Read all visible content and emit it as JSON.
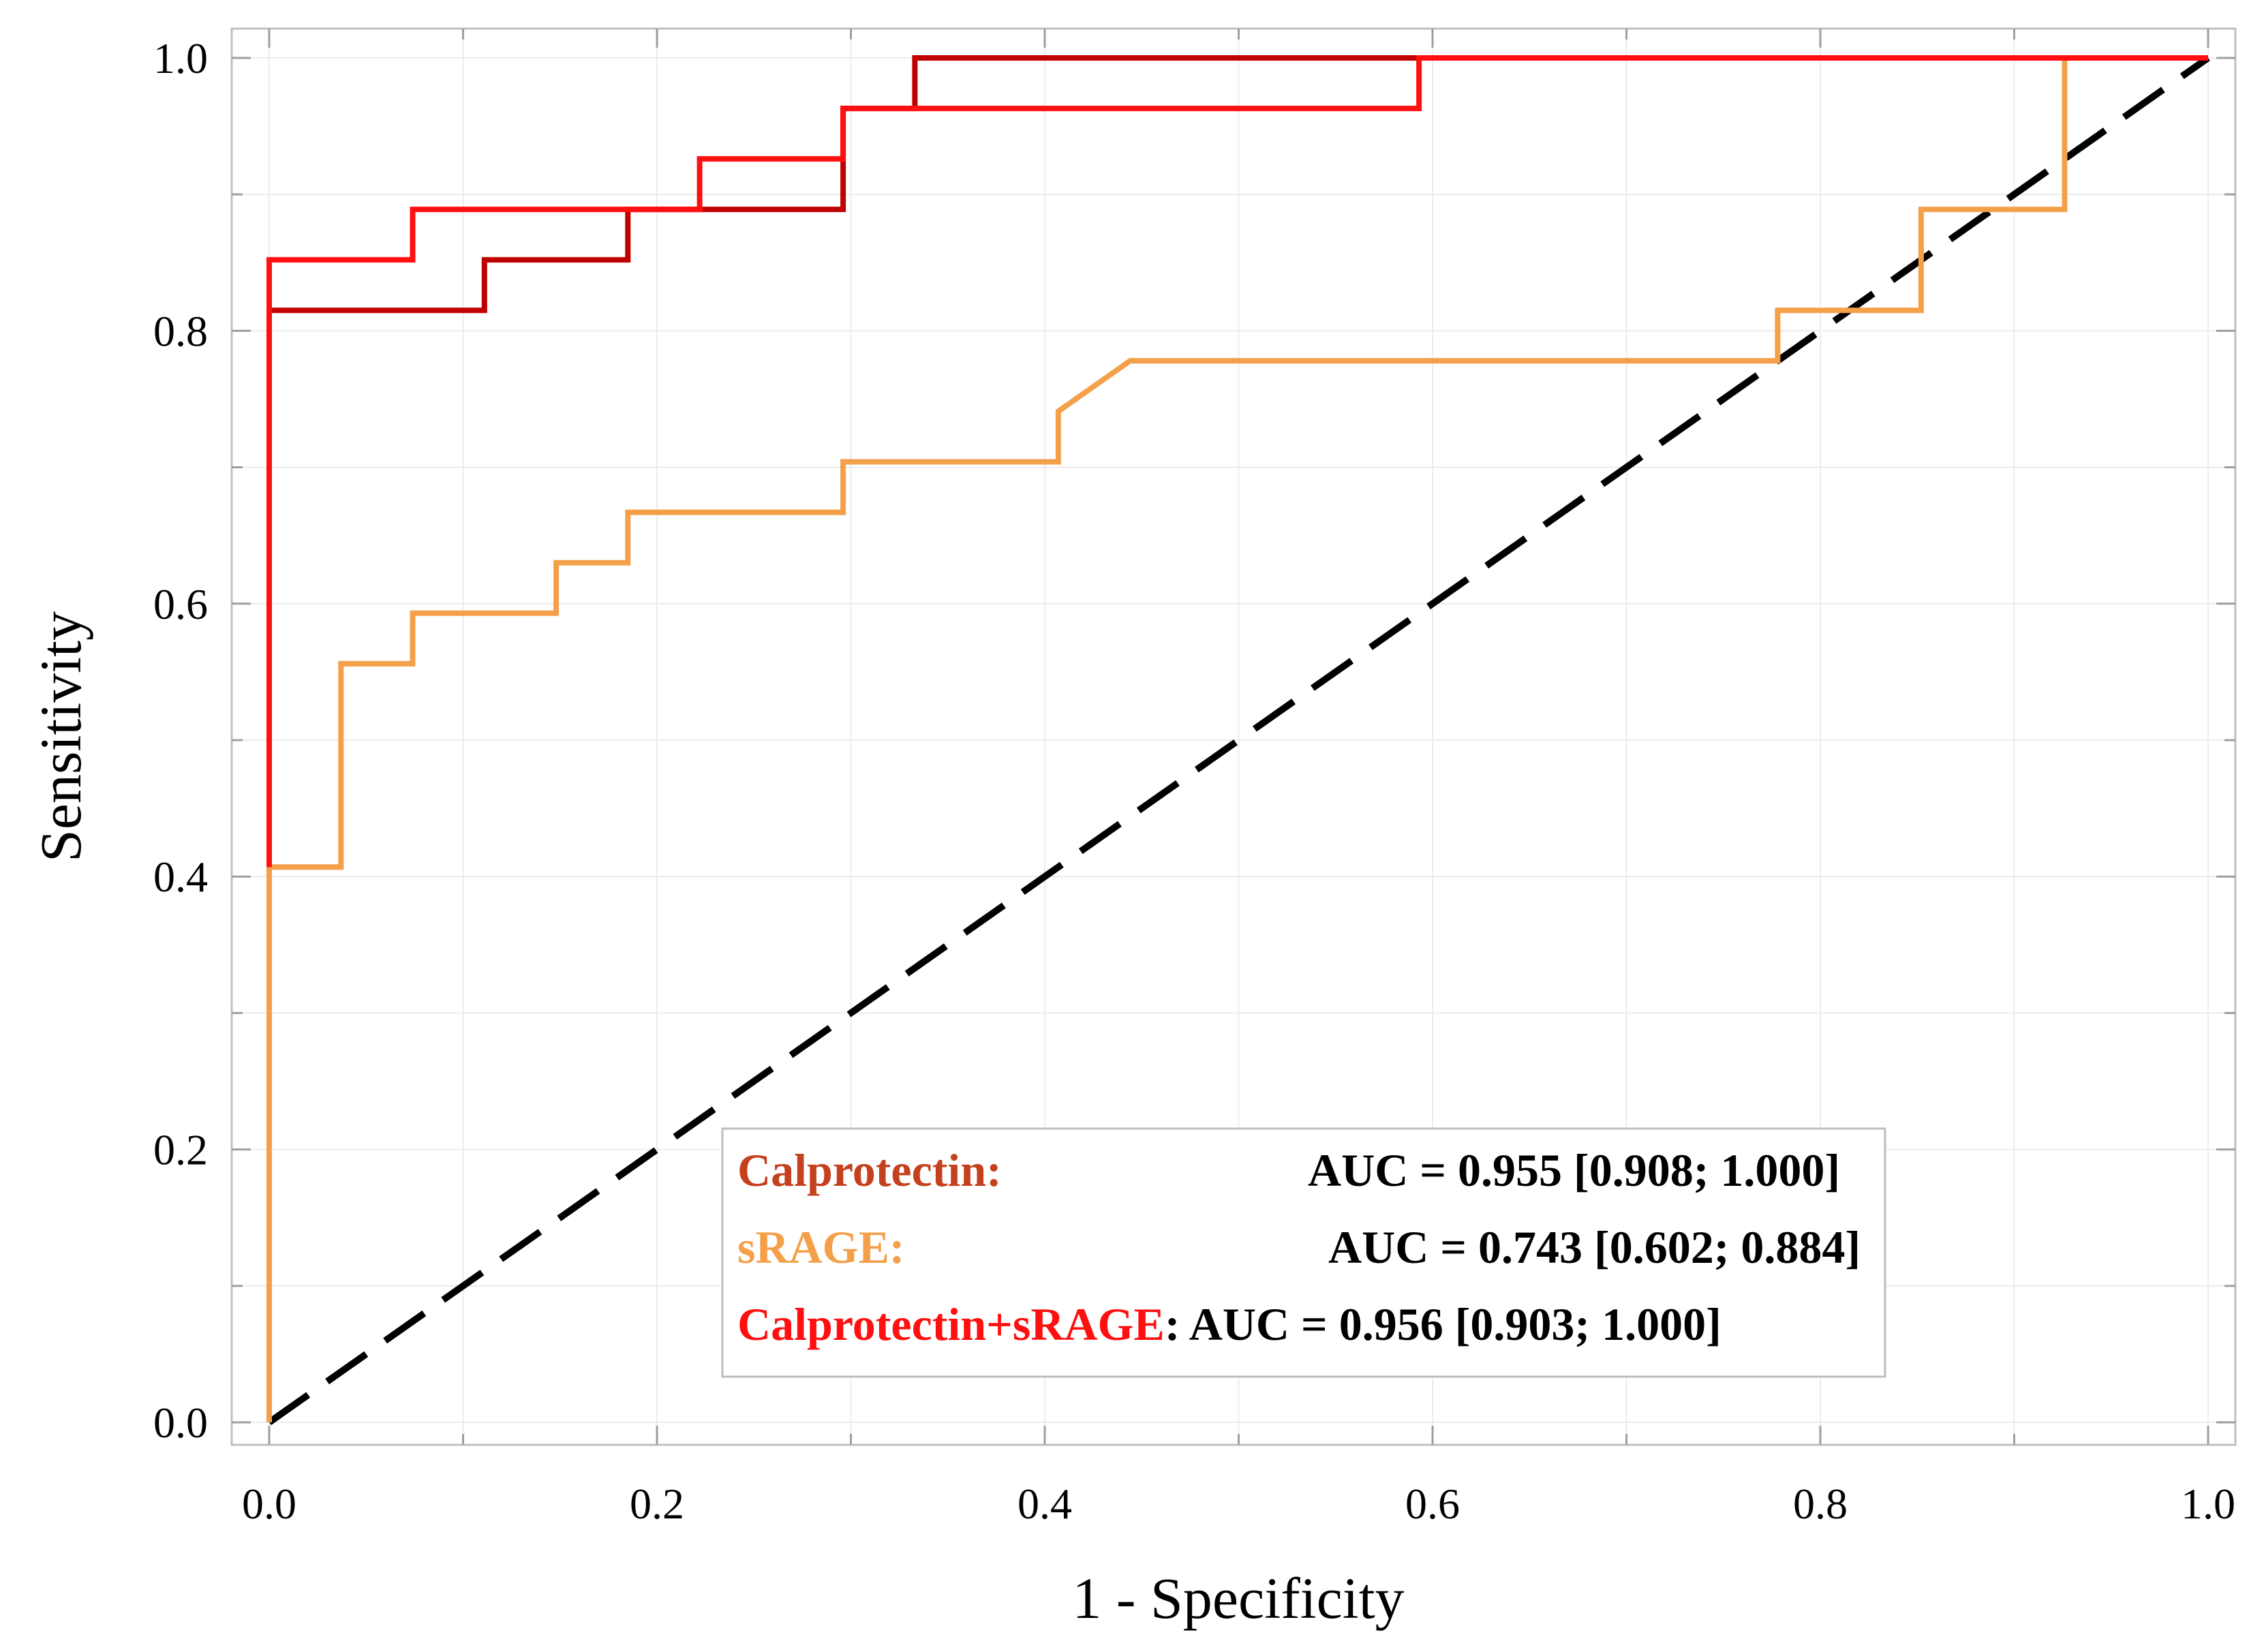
{
  "chart_data": {
    "type": "line",
    "title": "",
    "xlabel": "1 - Specificity",
    "ylabel": "Sensitivity",
    "xlim": [
      0.0,
      1.0
    ],
    "ylim": [
      0.0,
      1.0
    ],
    "x_ticks": [
      "0.0",
      "0.2",
      "0.4",
      "0.6",
      "0.8",
      "1.0"
    ],
    "y_ticks": [
      "0.0",
      "0.2",
      "0.4",
      "0.6",
      "0.8",
      "1.0"
    ],
    "grid": true,
    "legend_position": "bottom-right",
    "series": [
      {
        "name": "Calprotectin",
        "label": "Calprotectin:",
        "auc_text": "AUC = 0.955 [0.908; 1.000]",
        "color": "#c00000",
        "x": [
          0,
          0,
          0.111,
          0.111,
          0.185,
          0.185,
          0.296,
          0.296,
          0.333,
          0.333,
          1.0
        ],
        "y": [
          0.407,
          0.815,
          0.815,
          0.852,
          0.852,
          0.889,
          0.889,
          0.963,
          0.963,
          1.0,
          1.0
        ]
      },
      {
        "name": "sRAGE",
        "label": "sRAGE:",
        "auc_text": "AUC = 0.743 [0.602; 0.884]",
        "color": "#f4a04b",
        "x": [
          0,
          0,
          0.037,
          0.037,
          0.074,
          0.074,
          0.148,
          0.148,
          0.185,
          0.185,
          0.296,
          0.296,
          0.407,
          0.407,
          0.444,
          0.778,
          0.778,
          0.852,
          0.852,
          0.926,
          0.926,
          1.0
        ],
        "y": [
          0,
          0.407,
          0.407,
          0.556,
          0.556,
          0.593,
          0.593,
          0.63,
          0.63,
          0.667,
          0.667,
          0.704,
          0.704,
          0.741,
          0.778,
          0.778,
          0.815,
          0.815,
          0.889,
          0.889,
          1.0,
          1.0
        ]
      },
      {
        "name": "Calprotectin+sRAGE",
        "label": "Calprotectin+sRAGE",
        "auc_text": ": AUC = 0.956 [0.903; 1.000]",
        "color": "#ff0f0f",
        "x": [
          0,
          0,
          0.074,
          0.074,
          0.222,
          0.222,
          0.296,
          0.296,
          0.593,
          0.593,
          1.0
        ],
        "y": [
          0.407,
          0.852,
          0.852,
          0.889,
          0.889,
          0.926,
          0.926,
          0.963,
          0.963,
          1.0,
          1.0
        ]
      },
      {
        "name": "reference",
        "label": "",
        "color": "#000000",
        "dashed": true,
        "x": [
          0,
          1
        ],
        "y": [
          0,
          1
        ]
      }
    ]
  }
}
